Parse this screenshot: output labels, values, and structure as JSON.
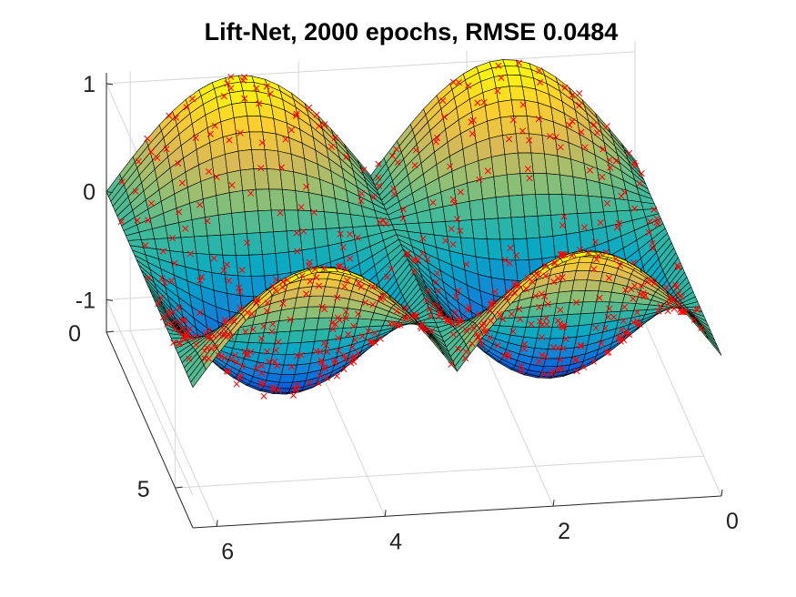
{
  "chart_data": {
    "type": "surface3d",
    "title": "Lift-Net, 2000 epochs, RMSE 0.0484",
    "xlabel": "",
    "ylabel": "",
    "zlabel": "",
    "x_axis": {
      "range": [
        0,
        6.2832
      ],
      "ticks": [
        "0",
        "2",
        "4",
        "6"
      ],
      "tick_values": [
        0,
        2,
        4,
        6
      ]
    },
    "y_axis": {
      "range": [
        0,
        6.2832
      ],
      "ticks": [
        "0",
        "5"
      ],
      "tick_values": [
        0,
        5
      ]
    },
    "z_axis": {
      "range": [
        -1.3,
        1.1
      ],
      "ticks": [
        "-1",
        "0",
        "1"
      ],
      "tick_values": [
        -1,
        0,
        1
      ]
    },
    "grid": true,
    "colormap": "parula",
    "colormap_stops": [
      "#352a87",
      "#0363e1",
      "#1485d4",
      "#06a7c6",
      "#38b99e",
      "#92bf73",
      "#d9ba56",
      "#fcce2e",
      "#f9fb0e"
    ],
    "surface": {
      "description_formula": "z = |sin(x)| * cos(y)",
      "grid_size": [
        40,
        40
      ],
      "edge_color": "#000000",
      "face_alpha": 1
    },
    "samples": {
      "marker": "x",
      "color": "#ff0000",
      "count": 600
    }
  }
}
